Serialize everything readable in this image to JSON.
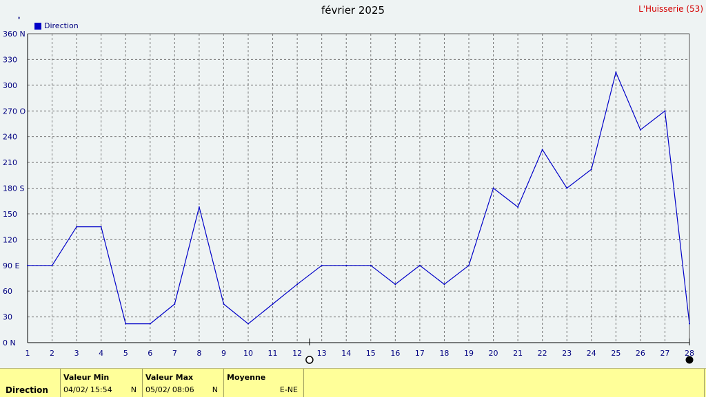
{
  "header": {
    "title": "février 2025",
    "station": "L'Huisserie (53)",
    "unit": "°"
  },
  "legend": {
    "label": "Direction",
    "color": "#0000c8"
  },
  "chart_data": {
    "type": "line",
    "title": "février 2025",
    "xlabel": "",
    "ylabel": "°",
    "x": [
      1,
      2,
      3,
      4,
      5,
      6,
      7,
      8,
      9,
      10,
      11,
      12,
      13,
      14,
      15,
      16,
      17,
      18,
      19,
      20,
      21,
      22,
      23,
      24,
      25,
      26,
      27,
      28
    ],
    "xlim": [
      1,
      28
    ],
    "ylim": [
      0,
      360
    ],
    "grid": true,
    "legend_position": "top-left",
    "y_ticks": [
      "0 N",
      "30",
      "60",
      "90 E",
      "120",
      "150",
      "180 S",
      "210",
      "240",
      "270 O",
      "300",
      "330",
      "360 N"
    ],
    "x_ticks": [
      "1",
      "2",
      "3",
      "4",
      "5",
      "6",
      "7",
      "8",
      "9",
      "10",
      "11",
      "12",
      "13",
      "14",
      "15",
      "16",
      "17",
      "18",
      "19",
      "20",
      "21",
      "22",
      "23",
      "24",
      "25",
      "26",
      "27",
      "28"
    ],
    "series": [
      {
        "name": "Direction",
        "color": "#0000c8",
        "values": [
          90,
          90,
          135,
          135,
          22,
          22,
          45,
          158,
          45,
          22,
          45,
          68,
          90,
          90,
          90,
          68,
          90,
          68,
          90,
          180,
          158,
          225,
          180,
          202,
          315,
          248,
          270,
          22
        ]
      }
    ]
  },
  "footer": {
    "row_label": "Direction",
    "min": {
      "header": "Valeur Min",
      "value": "04/02/  15:54",
      "dir": "N"
    },
    "max": {
      "header": "Valeur Max",
      "value": "05/02/  08:06",
      "dir": "N"
    },
    "avg": {
      "header": "Moyenne",
      "value": "E-NE"
    }
  }
}
